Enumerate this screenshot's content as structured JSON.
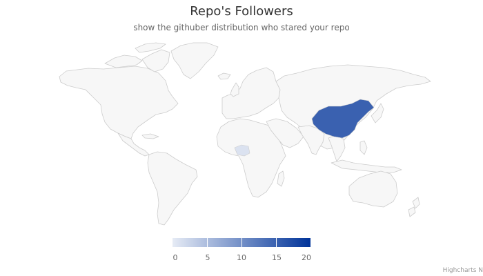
{
  "chart_data": {
    "type": "heatmap",
    "title": "Repo's Followers",
    "subtitle": "show the githuber distribution who stared your repo",
    "countries": [
      {
        "code": "CN",
        "value": 15
      },
      {
        "code": "NG",
        "value": 1
      }
    ],
    "color_axis": {
      "min": 0,
      "max": 20,
      "min_color": "#e6ebf5",
      "max_color": "#003399",
      "ticks": [
        "0",
        "5",
        "10",
        "15",
        "20"
      ]
    },
    "land_color": "#f7f7f7",
    "border_color": "#cccccc"
  },
  "credits": "Highcharts N"
}
